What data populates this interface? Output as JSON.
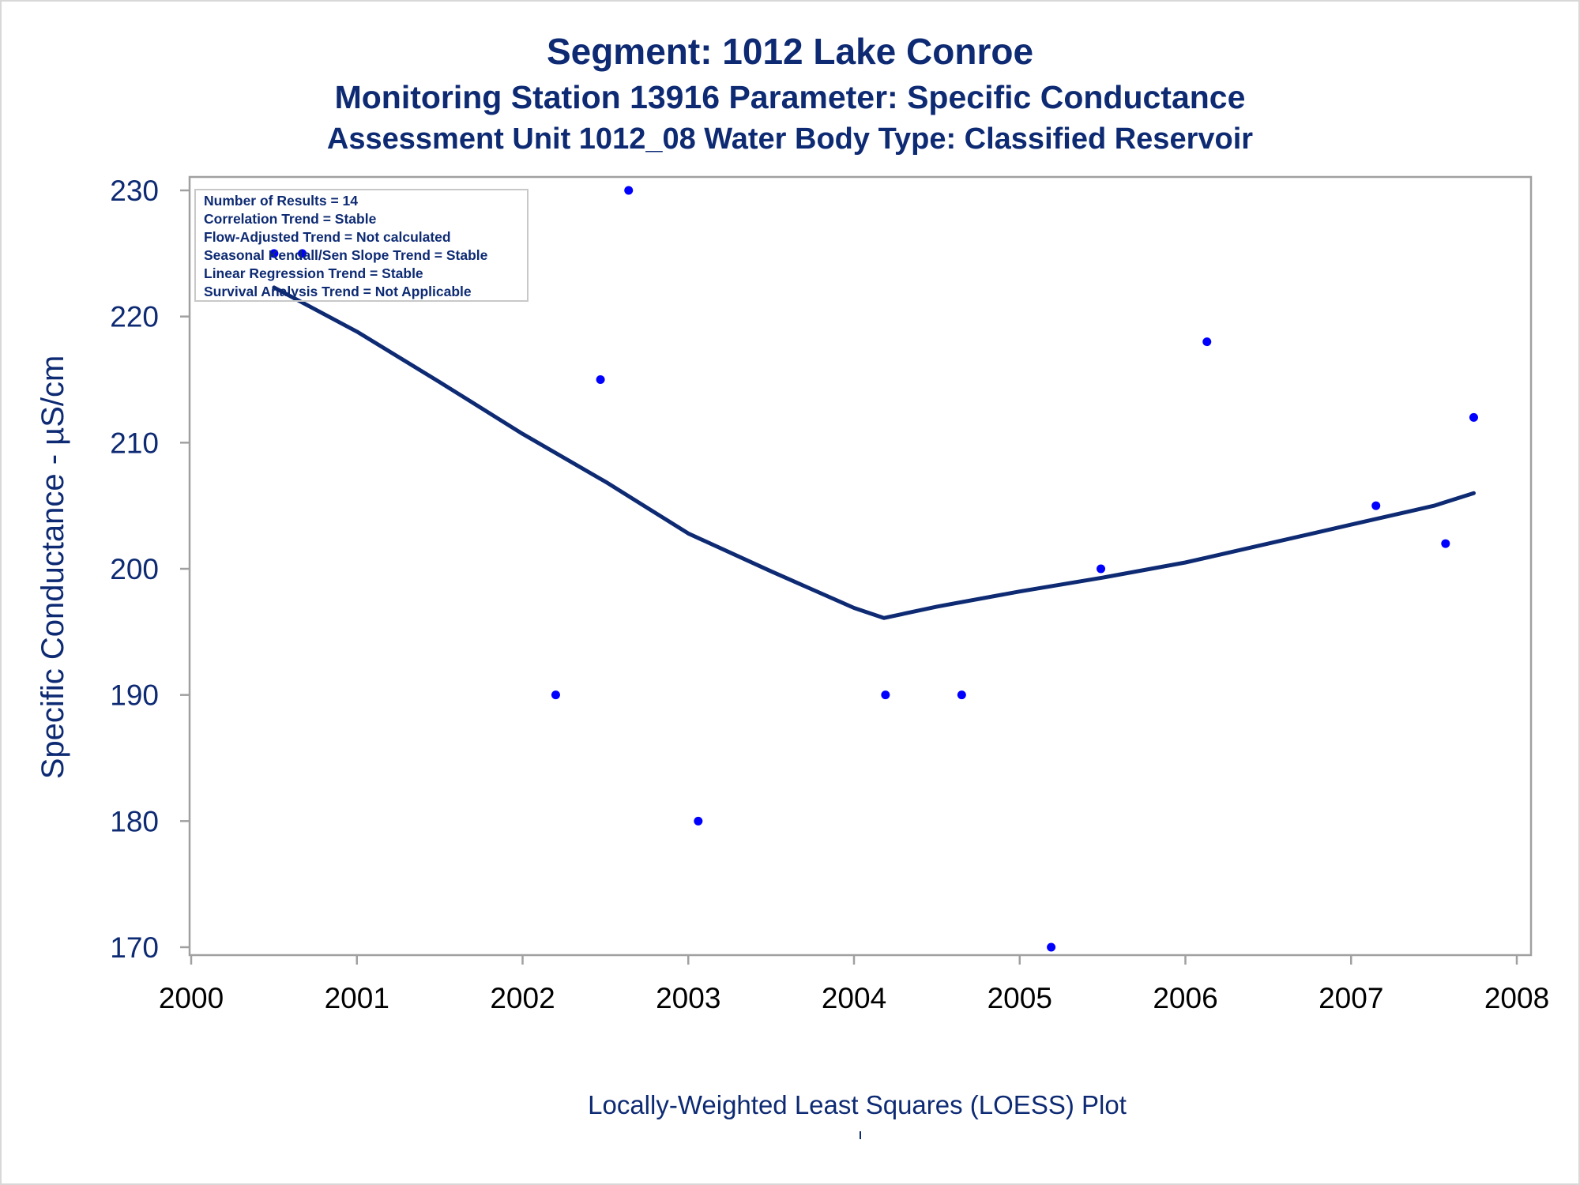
{
  "titles": {
    "line1": "Segment: 1012  Lake Conroe",
    "line2": "Monitoring Station 13916 Parameter: Specific Conductance",
    "line3": "Assessment Unit 1012_08   Water Body Type: Classified Reservoir"
  },
  "footnote": "Locally-Weighted Least Squares (LOESS) Plot",
  "colors": {
    "title": "#0d2a73",
    "points": "#0000ff",
    "loess_line": "#0d2a73",
    "axis": "#a0a0a0",
    "x_tick_labels": "#000000",
    "y_tick_labels": "#0d2a73"
  },
  "chart_data": {
    "type": "scatter",
    "title": "Segment: 1012  Lake Conroe",
    "ylabel": "Specific Conductance -  µS/cm",
    "xlabel": "",
    "xlim": [
      2000,
      2008
    ],
    "ylim": [
      170,
      230
    ],
    "x_ticks": [
      2000,
      2001,
      2002,
      2003,
      2004,
      2005,
      2006,
      2007,
      2008
    ],
    "x_tick_labels": [
      "2000",
      "2001",
      "2002",
      "2003",
      "2004",
      "2005",
      "2006",
      "2007",
      "2008"
    ],
    "y_ticks": [
      170,
      180,
      190,
      200,
      210,
      220,
      230
    ],
    "y_tick_labels": [
      "170",
      "180",
      "190",
      "200",
      "210",
      "220",
      "230"
    ],
    "grid": false,
    "legend": {
      "placement": "top-left",
      "lines": [
        "Number of Results = 14",
        "Correlation Trend = Stable",
        "Flow-Adjusted Trend = Not calculated",
        "Seasonal Kendall/Sen Slope Trend = Stable",
        "Linear Regression Trend = Stable",
        "Survival Analysis Trend = Not Applicable"
      ]
    },
    "series": [
      {
        "kind": "points",
        "x": [
          2000.5,
          2000.67,
          2002.2,
          2002.47,
          2002.64,
          2003.06,
          2004.19,
          2004.65,
          2005.19,
          2005.49,
          2006.13,
          2007.15,
          2007.57,
          2007.74
        ],
        "y": [
          225,
          225,
          190,
          215,
          230,
          180,
          190,
          190,
          170,
          200,
          218,
          205,
          202,
          212
        ]
      },
      {
        "kind": "loess",
        "x": [
          2000.5,
          2001.0,
          2001.5,
          2002.0,
          2002.5,
          2003.0,
          2003.5,
          2004.0,
          2004.18,
          2004.5,
          2005.0,
          2005.5,
          2006.0,
          2006.5,
          2007.0,
          2007.5,
          2007.74
        ],
        "y": [
          222.3,
          218.8,
          214.8,
          210.7,
          206.9,
          202.8,
          199.8,
          196.9,
          196.1,
          197.0,
          198.2,
          199.3,
          200.5,
          202.0,
          203.5,
          205.0,
          206.0
        ]
      }
    ]
  }
}
